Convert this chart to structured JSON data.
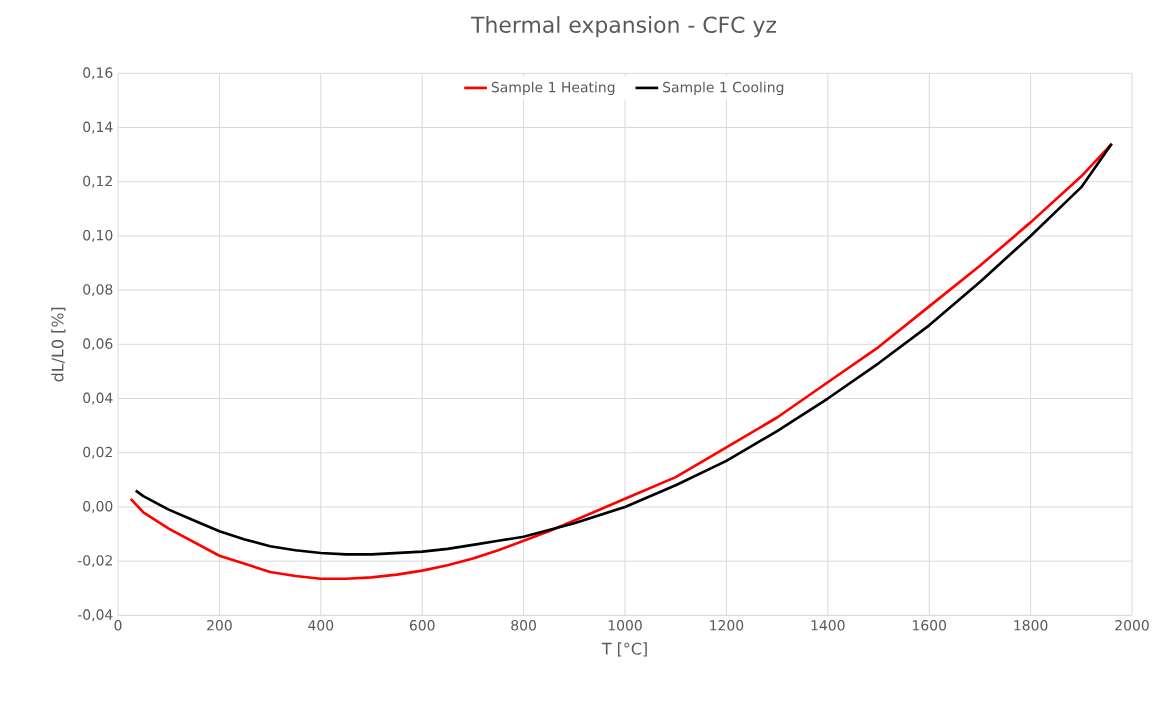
{
  "chart_data": {
    "type": "line",
    "title": "Thermal expansion - CFC yz",
    "xlabel": "T [°C]",
    "ylabel": "dL/L0 [%]",
    "xlim": [
      0,
      2000
    ],
    "xticks": [
      0,
      200,
      400,
      600,
      800,
      1000,
      1200,
      1400,
      1600,
      1800,
      2000
    ],
    "ylim": [
      -0.04,
      0.16
    ],
    "yticks": [
      {
        "value": -0.04,
        "label": "-0,04"
      },
      {
        "value": -0.02,
        "label": "-0,02"
      },
      {
        "value": 0,
        "label": "0,00"
      },
      {
        "value": 0.02,
        "label": "0,02"
      },
      {
        "value": 0.04,
        "label": "0,04"
      },
      {
        "value": 0.06,
        "label": "0,06"
      },
      {
        "value": 0.08,
        "label": "0,08"
      },
      {
        "value": 0.1,
        "label": "0,10"
      },
      {
        "value": 0.12,
        "label": "0,12"
      },
      {
        "value": 0.14,
        "label": "0,14"
      },
      {
        "value": 0.16,
        "label": "0,16"
      }
    ],
    "grid": true,
    "legend": "top",
    "marker": "none",
    "line_style": "solid",
    "series": [
      {
        "name": "Sample 1 Heating",
        "color": "#ff0000",
        "x": [
          25,
          50,
          100,
          150,
          200,
          250,
          300,
          350,
          400,
          450,
          500,
          550,
          600,
          650,
          700,
          750,
          800,
          850,
          900,
          950,
          1000,
          1100,
          1200,
          1300,
          1400,
          1500,
          1600,
          1700,
          1800,
          1900,
          1960
        ],
        "values": [
          0.003,
          -0.002,
          -0.008,
          -0.013,
          -0.018,
          -0.021,
          -0.024,
          -0.0255,
          -0.0265,
          -0.0265,
          -0.026,
          -0.025,
          -0.0235,
          -0.0215,
          -0.019,
          -0.016,
          -0.0125,
          -0.009,
          -0.005,
          -0.001,
          0.003,
          0.011,
          0.022,
          0.033,
          0.046,
          0.059,
          0.074,
          0.089,
          0.105,
          0.122,
          0.134
        ]
      },
      {
        "name": "Sample 1 Cooling",
        "color": "#000000",
        "x": [
          35,
          50,
          100,
          150,
          200,
          250,
          300,
          350,
          400,
          450,
          500,
          550,
          600,
          650,
          700,
          750,
          800,
          850,
          900,
          950,
          1000,
          1100,
          1200,
          1300,
          1400,
          1500,
          1600,
          1700,
          1800,
          1900,
          1960
        ],
        "values": [
          0.006,
          0.004,
          -0.001,
          -0.005,
          -0.009,
          -0.012,
          -0.0145,
          -0.016,
          -0.017,
          -0.0175,
          -0.0175,
          -0.017,
          -0.0165,
          -0.0155,
          -0.014,
          -0.0125,
          -0.011,
          -0.0085,
          -0.006,
          -0.003,
          0.0,
          0.008,
          0.017,
          0.028,
          0.04,
          0.053,
          0.067,
          0.083,
          0.1,
          0.118,
          0.134
        ]
      }
    ]
  }
}
